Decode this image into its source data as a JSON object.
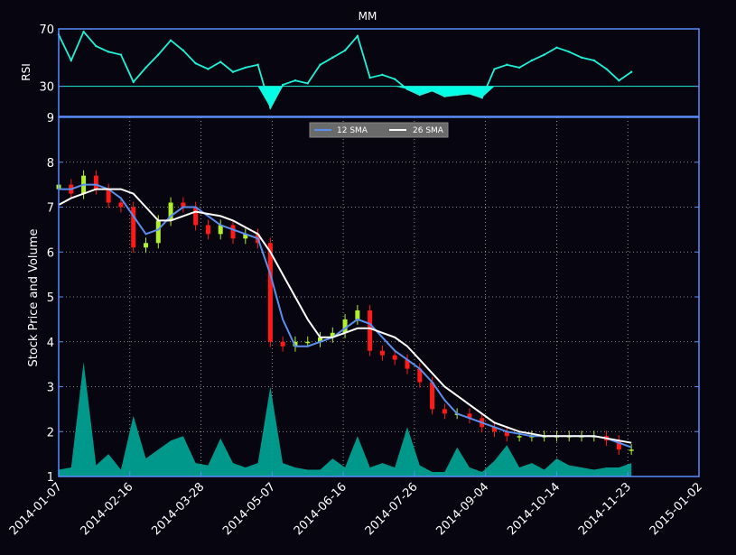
{
  "chart_data": [
    {
      "type": "line",
      "panel": "rsi",
      "title": "MM",
      "ylabel": "RSI",
      "yticks": [
        70,
        30
      ],
      "ylim": [
        9,
        70
      ],
      "reference_line": 30,
      "colors": {
        "line": "#1ef2d8",
        "fill": "#00ffe6",
        "reference": "#1ef2d8",
        "frame": "#5a8cff"
      },
      "series": [
        {
          "x": [
            "2014-01-07",
            "2014-01-14",
            "2014-01-21",
            "2014-01-28",
            "2014-02-04",
            "2014-02-11",
            "2014-02-18",
            "2014-02-25",
            "2014-03-04",
            "2014-03-11",
            "2014-03-18",
            "2014-03-25",
            "2014-04-01",
            "2014-04-08",
            "2014-04-15",
            "2014-04-22",
            "2014-04-29",
            "2014-05-06",
            "2014-05-13",
            "2014-05-20",
            "2014-05-27",
            "2014-06-03",
            "2014-06-10",
            "2014-06-17",
            "2014-06-24",
            "2014-07-01",
            "2014-07-08",
            "2014-07-15",
            "2014-07-22",
            "2014-07-29",
            "2014-08-05",
            "2014-08-12",
            "2014-08-19",
            "2014-08-26",
            "2014-09-02",
            "2014-09-09",
            "2014-09-16",
            "2014-09-23",
            "2014-09-30",
            "2014-10-07",
            "2014-10-14",
            "2014-10-21",
            "2014-10-28",
            "2014-11-04",
            "2014-11-11",
            "2014-11-18",
            "2014-11-25"
          ],
          "values": [
            66,
            48,
            68,
            58,
            54,
            52,
            33,
            43,
            52,
            62,
            55,
            46,
            42,
            47,
            40,
            43,
            45,
            15,
            31,
            34,
            32,
            45,
            50,
            55,
            65,
            36,
            38,
            35,
            28,
            24,
            27,
            23,
            24,
            25,
            22,
            42,
            45,
            43,
            48,
            52,
            57,
            54,
            50,
            48,
            42,
            34,
            40
          ]
        }
      ]
    },
    {
      "type": "candlestick",
      "panel": "price",
      "ylabel": "Stock Price and Volume",
      "ylim": [
        1,
        9
      ],
      "yticks": [
        1,
        2,
        3,
        4,
        5,
        6,
        7,
        8,
        9
      ],
      "xlim": [
        "2014-01-07",
        "2015-01-02"
      ],
      "xticks": [
        "2014-01-07",
        "2014-02-16",
        "2014-03-28",
        "2014-05-07",
        "2014-06-16",
        "2014-07-26",
        "2014-09-04",
        "2014-10-14",
        "2014-11-23",
        "2015-01-02"
      ],
      "grid": true,
      "legend": {
        "placement": "top-center"
      },
      "colors": {
        "up": "#b0f02a",
        "down": "#ff1a1a",
        "volume": "#00a898",
        "sma12": "#5b8fee",
        "sma26": "#ffffff",
        "grid": "#bbbbbb"
      },
      "price": {
        "x": [
          "2014-01-07",
          "2014-01-14",
          "2014-01-21",
          "2014-01-28",
          "2014-02-04",
          "2014-02-11",
          "2014-02-18",
          "2014-02-25",
          "2014-03-04",
          "2014-03-11",
          "2014-03-18",
          "2014-03-25",
          "2014-04-01",
          "2014-04-08",
          "2014-04-15",
          "2014-04-22",
          "2014-04-29",
          "2014-05-06",
          "2014-05-13",
          "2014-05-20",
          "2014-05-27",
          "2014-06-03",
          "2014-06-10",
          "2014-06-17",
          "2014-06-24",
          "2014-07-01",
          "2014-07-08",
          "2014-07-15",
          "2014-07-22",
          "2014-07-29",
          "2014-08-05",
          "2014-08-12",
          "2014-08-19",
          "2014-08-26",
          "2014-09-02",
          "2014-09-09",
          "2014-09-16",
          "2014-09-23",
          "2014-09-30",
          "2014-10-07",
          "2014-10-14",
          "2014-10-21",
          "2014-10-28",
          "2014-11-04",
          "2014-11-11",
          "2014-11-18",
          "2014-11-25"
        ],
        "close": [
          7.5,
          7.3,
          7.7,
          7.4,
          7.1,
          7.0,
          6.1,
          6.2,
          6.7,
          7.1,
          7.0,
          6.6,
          6.4,
          6.6,
          6.3,
          6.4,
          6.2,
          4.0,
          3.9,
          4.0,
          4.0,
          4.1,
          4.2,
          4.5,
          4.7,
          3.8,
          3.7,
          3.6,
          3.4,
          3.1,
          2.5,
          2.4,
          2.4,
          2.3,
          2.1,
          2.0,
          1.9,
          1.9,
          1.9,
          1.9,
          1.9,
          1.9,
          1.9,
          1.9,
          1.8,
          1.6,
          1.6
        ]
      },
      "series": [
        {
          "name": "12 SMA",
          "values": [
            7.4,
            7.4,
            7.5,
            7.5,
            7.4,
            7.2,
            6.8,
            6.4,
            6.5,
            6.8,
            7.0,
            7.0,
            6.8,
            6.6,
            6.5,
            6.4,
            6.3,
            5.5,
            4.5,
            3.9,
            3.9,
            4.0,
            4.1,
            4.3,
            4.5,
            4.4,
            4.1,
            3.8,
            3.6,
            3.4,
            3.1,
            2.7,
            2.4,
            2.3,
            2.2,
            2.1,
            2.0,
            1.95,
            1.9,
            1.9,
            1.9,
            1.9,
            1.9,
            1.9,
            1.85,
            1.75,
            1.65
          ]
        },
        {
          "name": "26 SMA",
          "values": [
            7.05,
            7.2,
            7.3,
            7.4,
            7.4,
            7.4,
            7.3,
            7.0,
            6.7,
            6.7,
            6.8,
            6.9,
            6.85,
            6.8,
            6.7,
            6.55,
            6.4,
            6.0,
            5.5,
            5.0,
            4.5,
            4.1,
            4.1,
            4.2,
            4.3,
            4.3,
            4.2,
            4.1,
            3.9,
            3.6,
            3.3,
            3.0,
            2.8,
            2.6,
            2.4,
            2.2,
            2.1,
            2.0,
            1.95,
            1.9,
            1.9,
            1.9,
            1.9,
            1.9,
            1.85,
            1.8,
            1.75
          ]
        }
      ],
      "volume": {
        "x": [
          "2014-01-07",
          "2014-01-14",
          "2014-01-21",
          "2014-01-28",
          "2014-02-04",
          "2014-02-11",
          "2014-02-18",
          "2014-02-25",
          "2014-03-04",
          "2014-03-11",
          "2014-03-18",
          "2014-03-25",
          "2014-04-01",
          "2014-04-08",
          "2014-04-15",
          "2014-04-22",
          "2014-04-29",
          "2014-05-06",
          "2014-05-13",
          "2014-05-20",
          "2014-05-27",
          "2014-06-03",
          "2014-06-10",
          "2014-06-17",
          "2014-06-24",
          "2014-07-01",
          "2014-07-08",
          "2014-07-15",
          "2014-07-22",
          "2014-07-29",
          "2014-08-05",
          "2014-08-12",
          "2014-08-19",
          "2014-08-26",
          "2014-09-02",
          "2014-09-09",
          "2014-09-16",
          "2014-09-23",
          "2014-09-30",
          "2014-10-07",
          "2014-10-14",
          "2014-10-21",
          "2014-10-28",
          "2014-11-04",
          "2014-11-11",
          "2014-11-18",
          "2014-11-25"
        ],
        "values": [
          1.15,
          1.2,
          3.55,
          1.25,
          1.5,
          1.15,
          2.35,
          1.4,
          1.6,
          1.8,
          1.9,
          1.3,
          1.25,
          1.85,
          1.3,
          1.2,
          1.3,
          3.0,
          1.3,
          1.2,
          1.15,
          1.15,
          1.4,
          1.2,
          1.9,
          1.2,
          1.3,
          1.2,
          2.1,
          1.25,
          1.1,
          1.1,
          1.65,
          1.2,
          1.1,
          1.35,
          1.7,
          1.2,
          1.3,
          1.15,
          1.4,
          1.25,
          1.2,
          1.15,
          1.2,
          1.2,
          1.3
        ]
      }
    }
  ]
}
